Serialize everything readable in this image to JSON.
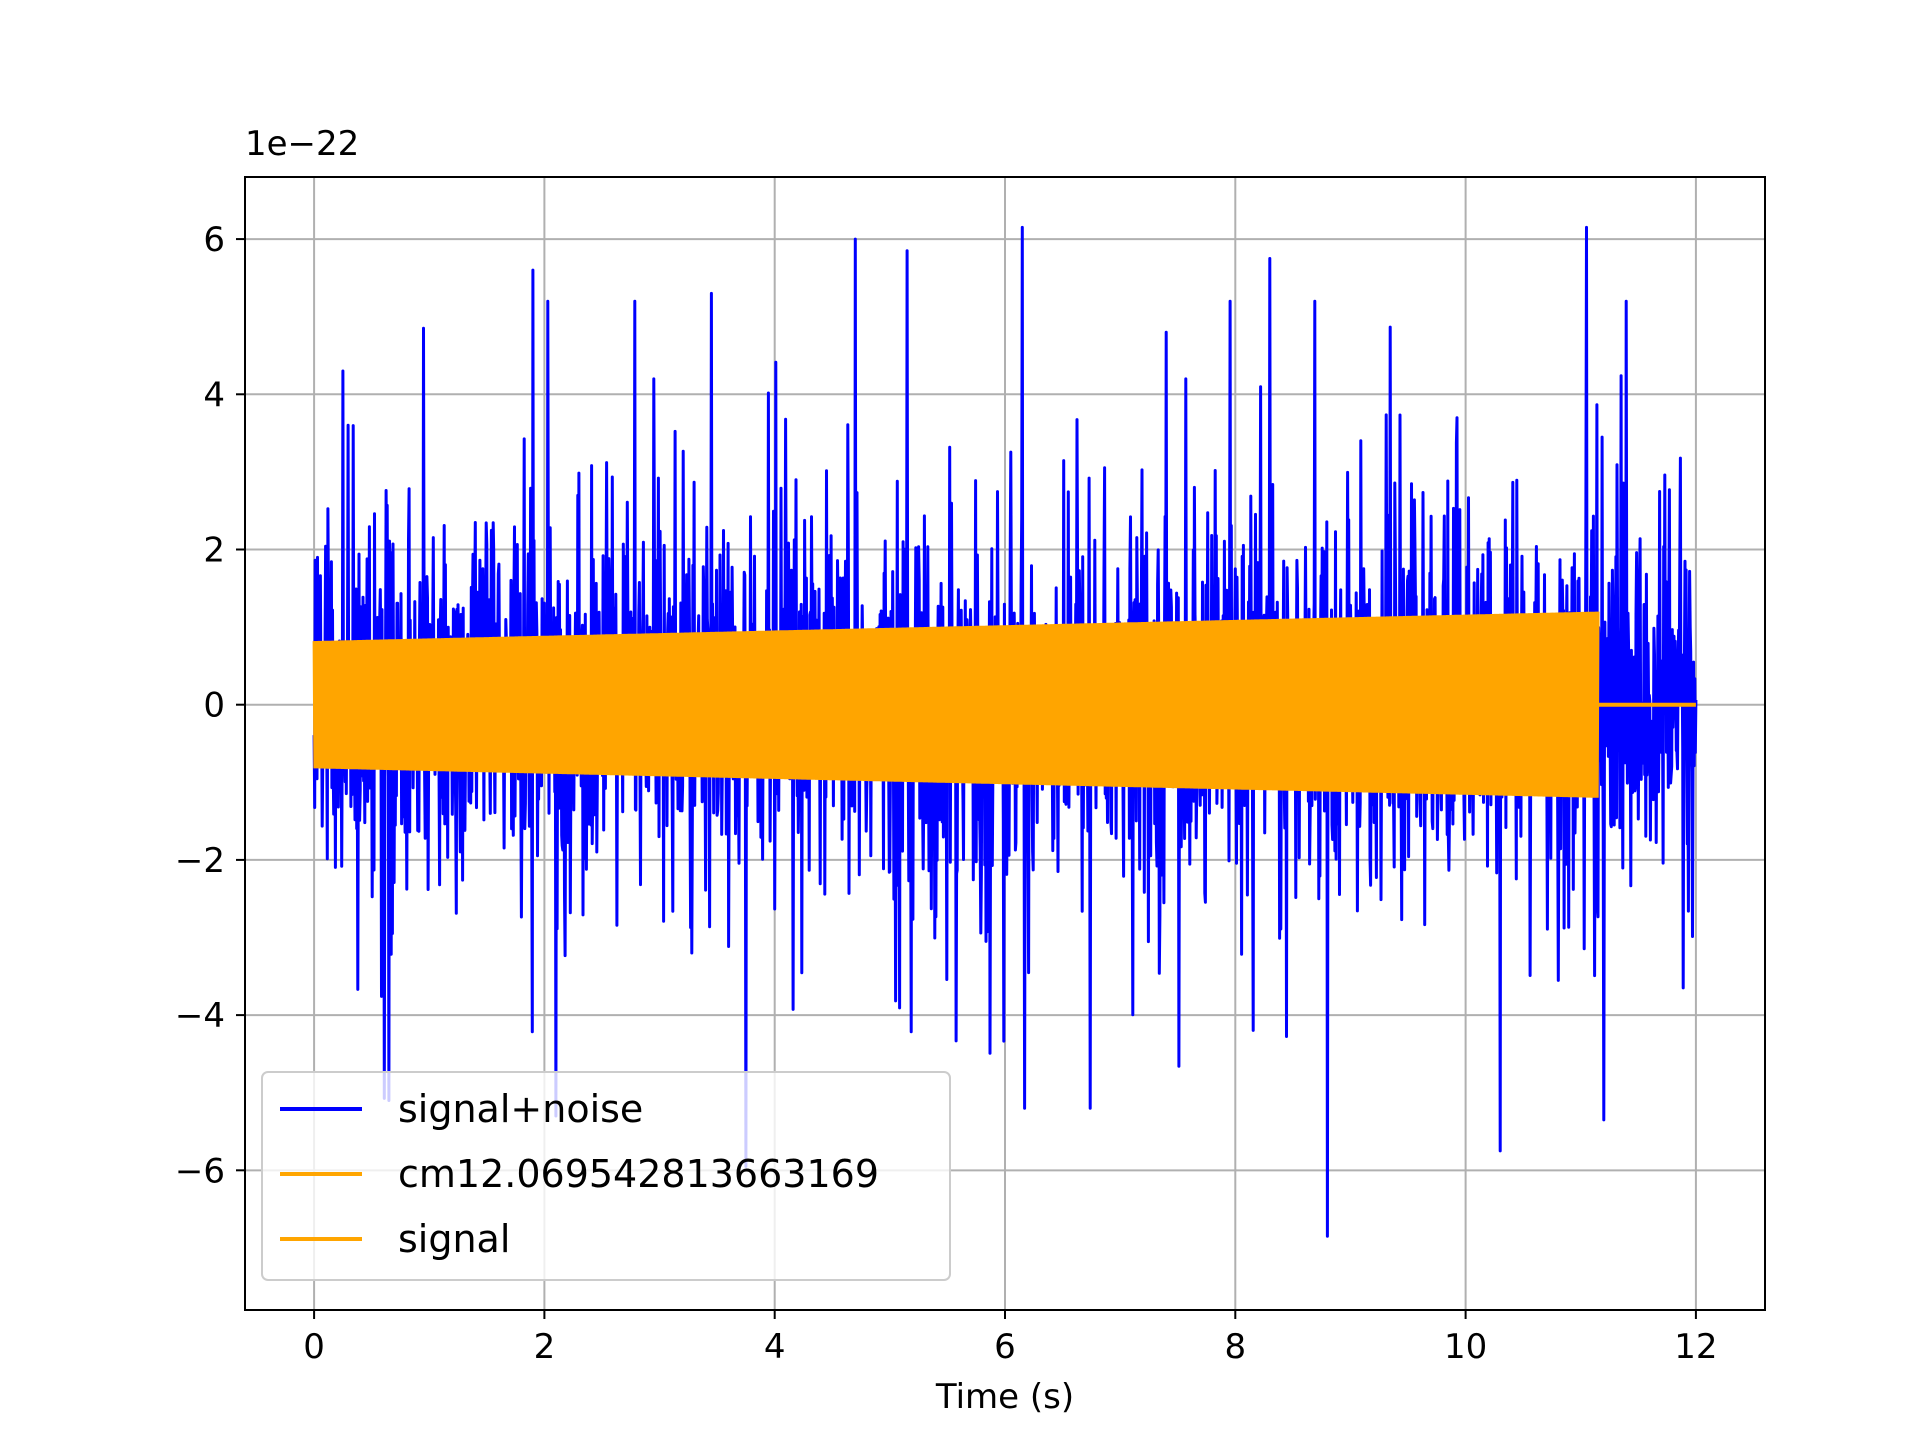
{
  "chart_data": {
    "type": "line",
    "title": "",
    "xlabel": "Time (s)",
    "ylabel": "",
    "y_offset_label": "1e−22",
    "y_scale_factor": 1e-22,
    "xlim": [
      -0.6,
      12.6
    ],
    "ylim": [
      -7.8,
      6.8
    ],
    "grid": true,
    "legend_position": "lower-left",
    "xticks": [
      0,
      2,
      4,
      6,
      8,
      10,
      12
    ],
    "xtick_labels": [
      "0",
      "2",
      "4",
      "6",
      "8",
      "10",
      "12"
    ],
    "yticks": [
      -6,
      -4,
      -2,
      0,
      2,
      4,
      6
    ],
    "ytick_labels": [
      "−6",
      "−4",
      "−2",
      "0",
      "2",
      "4",
      "6"
    ],
    "colors": {
      "noise": "#0000ff",
      "template": "#ffa500",
      "signal": "#ffa500"
    },
    "series": [
      {
        "name": "signal+noise",
        "color": "#0000ff",
        "x_range": [
          0,
          12
        ],
        "envelope_typical": 3.0,
        "peaks": [
          {
            "x": 0.25,
            "y": 4.3
          },
          {
            "x": 0.95,
            "y": 4.85
          },
          {
            "x": 1.9,
            "y": 5.6
          },
          {
            "x": 3.45,
            "y": 5.3
          },
          {
            "x": 4.7,
            "y": 6.0
          },
          {
            "x": 5.15,
            "y": 5.85
          },
          {
            "x": 6.15,
            "y": 6.15
          },
          {
            "x": 8.3,
            "y": 5.75
          },
          {
            "x": 11.05,
            "y": 6.15
          },
          {
            "x": 8.8,
            "y": -6.85
          },
          {
            "x": 10.3,
            "y": -5.75
          },
          {
            "x": 11.2,
            "y": -5.35
          },
          {
            "x": 2.1,
            "y": -5.3
          },
          {
            "x": 3.75,
            "y": -5.95
          },
          {
            "x": 0.65,
            "y": -5.1
          }
        ]
      },
      {
        "name": "cm12.069542813663169",
        "color": "#ffa500",
        "x_range": [
          0,
          11.15
        ],
        "amplitude_start": 0.82,
        "amplitude_end": 1.2,
        "value_after_end": 0
      },
      {
        "name": "signal",
        "color": "#ffa500",
        "x_range": [
          11.15,
          12
        ],
        "amplitude_start": 0,
        "amplitude_end": 0,
        "value_after_end": 0
      }
    ]
  }
}
